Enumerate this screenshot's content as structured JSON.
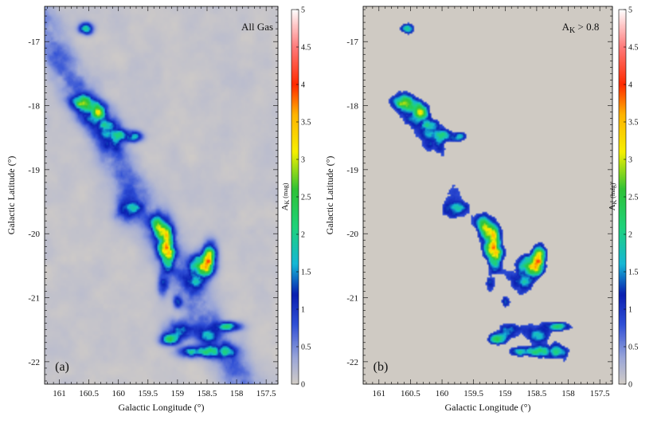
{
  "chart_data": [
    {
      "type": "heatmap",
      "panel_label": "(a)",
      "annotation": "All Gas",
      "xlabel": "Galactic Longitude (°)",
      "ylabel": "Galactic Latitude (°)",
      "x_ticks": [
        "161",
        "160.5",
        "160",
        "159.5",
        "159",
        "158.5",
        "158",
        "157.5"
      ],
      "x_tick_values": [
        161,
        160.5,
        160,
        159.5,
        159,
        158.5,
        158,
        157.5
      ],
      "y_ticks": [
        "-17",
        "-18",
        "-19",
        "-20",
        "-21",
        "-22"
      ],
      "y_tick_values": [
        -17,
        -18,
        -19,
        -20,
        -21,
        -22
      ],
      "xlim": [
        161.25,
        157.3
      ],
      "ylim": [
        -22.35,
        -16.45
      ],
      "background_color": "#cfcac3",
      "colorbar": {
        "label": "A_K (mag)",
        "label_main": "A",
        "label_sub": "K",
        "label_unit": " (mag)",
        "range": [
          0,
          5
        ],
        "ticks": [
          "0",
          "0.5",
          "1",
          "1.5",
          "2",
          "2.5",
          "3",
          "3.5",
          "4",
          "4.5",
          "5"
        ],
        "tick_values": [
          0,
          0.5,
          1,
          1.5,
          2,
          2.5,
          3,
          3.5,
          4,
          4.5,
          5
        ]
      },
      "threshold": 0
    },
    {
      "type": "heatmap",
      "panel_label": "(b)",
      "annotation": "A_K > 0.8",
      "annotation_main": "A",
      "annotation_sub": "K",
      "annotation_rest": " > 0.8",
      "xlabel": "Galactic Longitude (°)",
      "ylabel": "Galactic Latitude (°)",
      "x_ticks": [
        "161",
        "160.5",
        "160",
        "159.5",
        "159",
        "158.5",
        "158",
        "157.5"
      ],
      "x_tick_values": [
        161,
        160.5,
        160,
        159.5,
        159,
        158.5,
        158,
        157.5
      ],
      "y_ticks": [
        "-17",
        "-18",
        "-19",
        "-20",
        "-21",
        "-22"
      ],
      "y_tick_values": [
        -17,
        -18,
        -19,
        -20,
        -21,
        -22
      ],
      "xlim": [
        161.25,
        157.3
      ],
      "ylim": [
        -22.35,
        -16.45
      ],
      "background_color": "#cfcac3",
      "colorbar": {
        "label": "A_K (mag)",
        "label_main": "A",
        "label_sub": "K",
        "label_unit": " (mag)",
        "range": [
          0,
          5
        ],
        "ticks": [
          "0",
          "0.5",
          "1",
          "1.5",
          "2",
          "2.5",
          "3",
          "3.5",
          "4",
          "4.5",
          "5"
        ],
        "tick_values": [
          0,
          0.5,
          1,
          1.5,
          2,
          2.5,
          3,
          3.5,
          4,
          4.5,
          5
        ]
      },
      "threshold": 0.8
    }
  ],
  "colormap_stops": [
    {
      "v": 0.0,
      "c": "#d2cdc6"
    },
    {
      "v": 0.35,
      "c": "#9aa6d8"
    },
    {
      "v": 0.8,
      "c": "#2f4fd6"
    },
    {
      "v": 1.2,
      "c": "#0a1fb0"
    },
    {
      "v": 1.6,
      "c": "#16b7d6"
    },
    {
      "v": 2.1,
      "c": "#1fd27a"
    },
    {
      "v": 2.6,
      "c": "#2fc236"
    },
    {
      "v": 3.1,
      "c": "#f6f000"
    },
    {
      "v": 3.6,
      "c": "#ffb300"
    },
    {
      "v": 4.0,
      "c": "#ff2a00"
    },
    {
      "v": 4.5,
      "c": "#ff7a7a"
    },
    {
      "v": 5.0,
      "c": "#ffffff"
    }
  ]
}
